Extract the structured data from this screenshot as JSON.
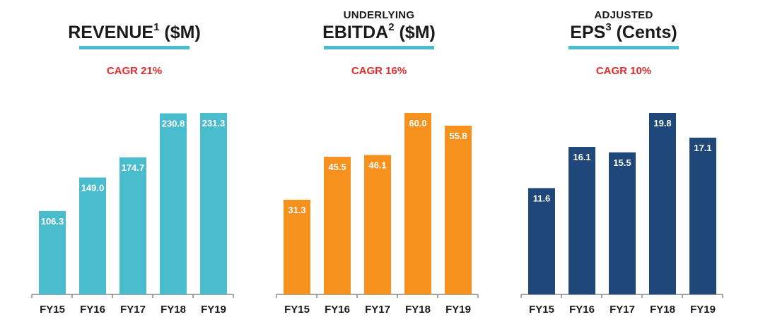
{
  "colors": {
    "revenue": "#49BCCE",
    "ebitda": "#F6911E",
    "eps": "#1F477A",
    "cagr": "#E32B2B",
    "underline": "#49BCCE",
    "axis": "#8a8a8a",
    "label_dark": "#1a1a1a"
  },
  "panels": [
    {
      "subtitle": "",
      "title": "REVENUE",
      "sup": "1",
      "unit": " ($M)",
      "cagr": "CAGR 21%"
    },
    {
      "subtitle": "UNDERLYING",
      "title": "EBITDA",
      "sup": "2",
      "unit": " ($M)",
      "cagr": "CAGR 16%"
    },
    {
      "subtitle": "ADJUSTED",
      "title": "EPS",
      "sup": "3",
      "unit": " (Cents)",
      "cagr": "CAGR 10%"
    }
  ],
  "chart_data": [
    {
      "type": "bar",
      "categories": [
        "FY15",
        "FY16",
        "FY17",
        "FY18",
        "FY19"
      ],
      "values": [
        106.3,
        149.0,
        174.7,
        230.8,
        231.3
      ],
      "labels": [
        "106.3",
        "149.0",
        "174.7",
        "230.8",
        "231.3"
      ],
      "title": "REVENUE1 ($M)",
      "ylim": [
        0,
        231.3
      ],
      "grid": false,
      "color": "#49BCCE"
    },
    {
      "type": "bar",
      "categories": [
        "FY15",
        "FY16",
        "FY17",
        "FY18",
        "FY19"
      ],
      "values": [
        31.3,
        45.5,
        46.1,
        60.0,
        55.8
      ],
      "labels": [
        "31.3",
        "45.5",
        "46.1",
        "60.0",
        "55.8"
      ],
      "title": "UNDERLYING EBITDA2 ($M)",
      "ylim": [
        0,
        60.0
      ],
      "grid": false,
      "color": "#F6911E"
    },
    {
      "type": "bar",
      "categories": [
        "FY15",
        "FY16",
        "FY17",
        "FY18",
        "FY19"
      ],
      "values": [
        11.6,
        16.1,
        15.5,
        19.8,
        17.1
      ],
      "labels": [
        "11.6",
        "16.1",
        "15.5",
        "19.8",
        "17.1"
      ],
      "title": "ADJUSTED EPS3 (Cents)",
      "ylim": [
        0,
        19.8
      ],
      "grid": false,
      "color": "#1F477A"
    }
  ]
}
